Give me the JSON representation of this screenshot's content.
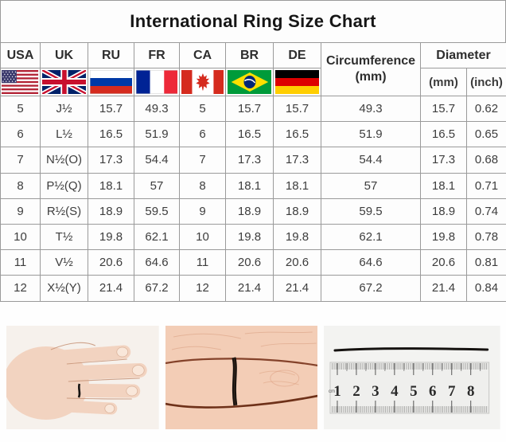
{
  "title": "International Ring Size Chart",
  "colors": {
    "border": "#9a9a9a",
    "cell_bg": "#fdfdfd",
    "text": "#3d3d3d",
    "thread": "#17110d",
    "skin": "#f2d3c0"
  },
  "table": {
    "country_columns": [
      "USA",
      "UK",
      "RU",
      "FR",
      "CA",
      "BR",
      "DE"
    ],
    "flag_icons": [
      "us-flag-icon",
      "uk-flag-icon",
      "ru-flag-icon",
      "fr-flag-icon",
      "ca-flag-icon",
      "br-flag-icon",
      "de-flag-icon"
    ],
    "circumference_header": {
      "line1": "Circumference",
      "line2": "(mm)"
    },
    "diameter_header": {
      "label": "Diameter",
      "sub_mm": "(mm)",
      "sub_inch": "(inch)"
    },
    "rows": [
      [
        "5",
        "J½",
        "15.7",
        "49.3",
        "5",
        "15.7",
        "15.7",
        "49.3",
        "15.7",
        "0.62"
      ],
      [
        "6",
        "L½",
        "16.5",
        "51.9",
        "6",
        "16.5",
        "16.5",
        "51.9",
        "16.5",
        "0.65"
      ],
      [
        "7",
        "N½(O)",
        "17.3",
        "54.4",
        "7",
        "17.3",
        "17.3",
        "54.4",
        "17.3",
        "0.68"
      ],
      [
        "8",
        "P½(Q)",
        "18.1",
        "57",
        "8",
        "18.1",
        "18.1",
        "57",
        "18.1",
        "0.71"
      ],
      [
        "9",
        "R½(S)",
        "18.9",
        "59.5",
        "9",
        "18.9",
        "18.9",
        "59.5",
        "18.9",
        "0.74"
      ],
      [
        "10",
        "T½",
        "19.8",
        "62.1",
        "10",
        "19.8",
        "19.8",
        "62.1",
        "19.8",
        "0.78"
      ],
      [
        "11",
        "V½",
        "20.6",
        "64.6",
        "11",
        "20.6",
        "20.6",
        "64.6",
        "20.6",
        "0.81"
      ],
      [
        "12",
        "X½(Y)",
        "21.4",
        "67.2",
        "12",
        "21.4",
        "21.4",
        "67.2",
        "21.4",
        "0.84"
      ]
    ]
  },
  "photos": {
    "ruler": {
      "unit": "cm",
      "numbers": [
        "1",
        "2",
        "3",
        "4",
        "5",
        "6",
        "7",
        "8"
      ]
    }
  }
}
